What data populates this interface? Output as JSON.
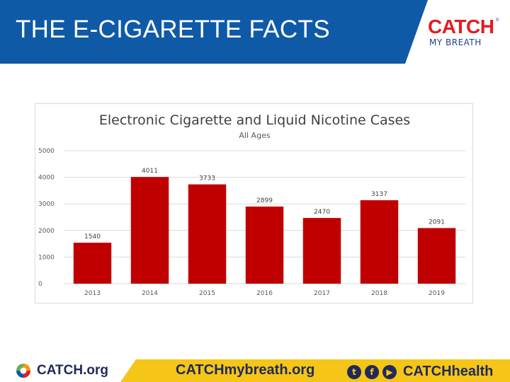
{
  "header": {
    "title": "THE E-CIGARETTE FACTS",
    "logo_main": "CATCH",
    "logo_reg": "®",
    "logo_sub": "MY BREATH"
  },
  "colors": {
    "header_blue": "#0e5aa7",
    "logo_red": "#e31b23",
    "logo_blue": "#1f3f8f",
    "bar_red": "#c00000",
    "footer_yellow": "#f5c518",
    "footer_navy": "#1f2a5c",
    "catch_green": "#6ab04c",
    "catch_orange": "#f39c12"
  },
  "chart_data": {
    "type": "bar",
    "title": "Electronic Cigarette and Liquid Nicotine Cases",
    "subtitle": "All Ages",
    "categories": [
      "2013",
      "2014",
      "2015",
      "2016",
      "2017",
      "2018",
      "2019"
    ],
    "values": [
      1540,
      4011,
      3733,
      2899,
      2470,
      3137,
      2091
    ],
    "data_labels": [
      "1540",
      "4011",
      "3733",
      "2899",
      "2470",
      "3137",
      "2091"
    ],
    "yticks": [
      0,
      1000,
      2000,
      3000,
      4000,
      5000
    ],
    "ylim": [
      0,
      5000
    ],
    "grid": true,
    "legend": "none"
  },
  "footer": {
    "org": "CATCH.org",
    "site": "CATCHmybreath.org",
    "social_handle": "CATCHhealth",
    "social_icons": [
      "twitter-icon",
      "facebook-icon",
      "youtube-icon"
    ],
    "icon_glyphs": [
      "t",
      "f",
      "▶"
    ]
  }
}
